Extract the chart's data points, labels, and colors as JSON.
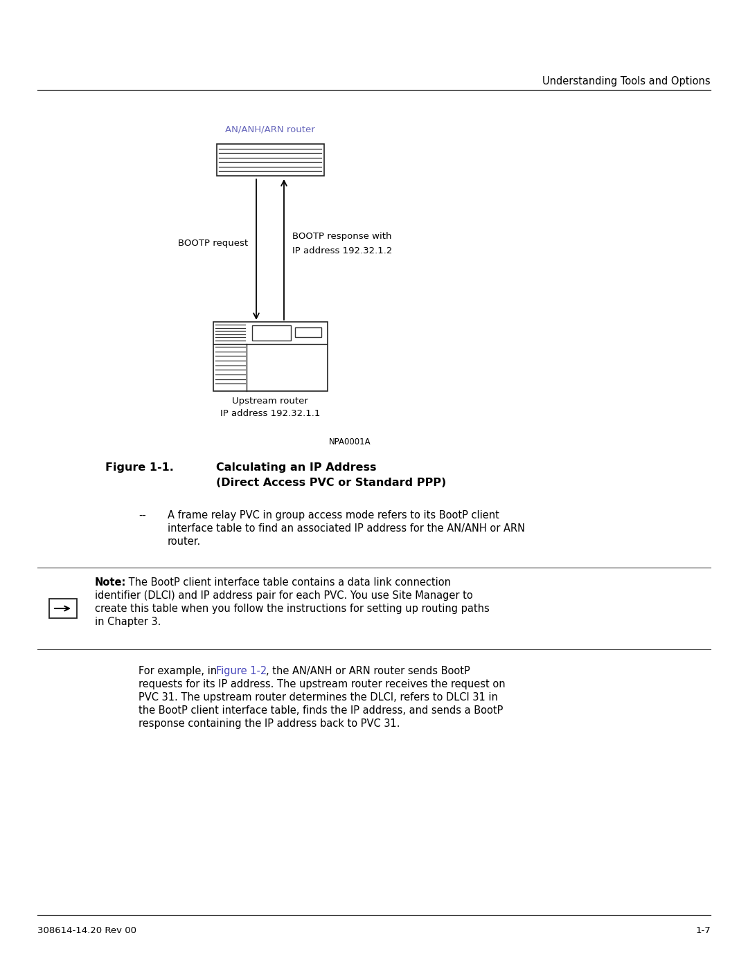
{
  "page_header": "Understanding Tools and Options",
  "figure_label": "Figure 1-1.",
  "figure_title_line1": "Calculating an IP Address",
  "figure_title_line2": "(Direct Access PVC or Standard PPP)",
  "npa_label": "NPA0001A",
  "router_label": "AN/ANH/ARN router",
  "router_label_color": "#6666bb",
  "bootp_request_label": "BOOTP request",
  "bootp_response_label1": "BOOTP response with",
  "bootp_response_label2": "IP address 192.32.1.2",
  "upstream_label1": "Upstream router",
  "upstream_label2": "IP address 192.32.1.1",
  "bullet_dash": "--",
  "bullet_para1": "A frame relay PVC in group access mode refers to its BootP client",
  "bullet_para2": "interface table to find an associated IP address for the AN/ANH or ARN",
  "bullet_para3": "router.",
  "note_label": "Note:",
  "note_line1": " The BootP client interface table contains a data link connection",
  "note_line2": "identifier (DLCI) and IP address pair for each PVC. You use Site Manager to",
  "note_line3": "create this table when you follow the instructions for setting up routing paths",
  "note_line4": "in Chapter 3.",
  "body_prefix": "For example, in ",
  "body_link": "Figure 1-2",
  "body_suffix": ", the AN/ANH or ARN router sends BootP",
  "body_line2": "requests for its IP address. The upstream router receives the request on",
  "body_line3": "PVC 31. The upstream router determines the DLCI, refers to DLCI 31 in",
  "body_line4": "the BootP client interface table, finds the IP address, and sends a BootP",
  "body_line5": "response containing the IP address back to PVC 31.",
  "footer_left": "308614-14.20 Rev 00",
  "footer_right": "1-7",
  "bg_color": "#ffffff",
  "text_color": "#000000",
  "link_color": "#4444bb"
}
